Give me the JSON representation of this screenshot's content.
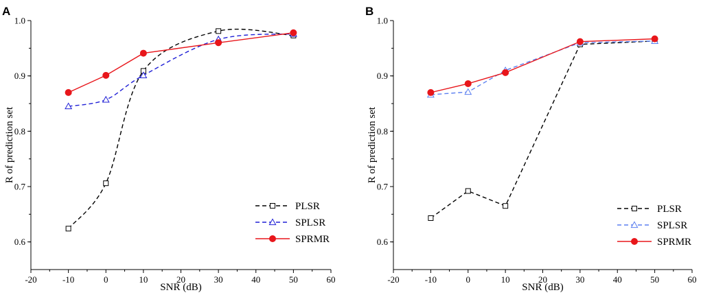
{
  "chart_data": [
    {
      "panel": "A",
      "type": "line",
      "xlabel": "SNR (dB)",
      "ylabel": "R of prediction set",
      "xlim": [
        -20,
        60
      ],
      "ylim": [
        0.55,
        1.0
      ],
      "xticks": [
        -20,
        -10,
        0,
        10,
        20,
        30,
        40,
        50,
        60
      ],
      "yticks": [
        0.6,
        0.7,
        0.8,
        0.9,
        1.0
      ],
      "x": [
        -10,
        0,
        10,
        30,
        50
      ],
      "series": [
        {
          "name": "PLSR",
          "values": [
            0.624,
            0.706,
            0.909,
            0.981,
            0.973
          ],
          "color": "#000000",
          "marker": "square",
          "dashed": true,
          "smooth": true
        },
        {
          "name": "SPLSR",
          "values": [
            0.845,
            0.857,
            0.901,
            0.966,
            0.976
          ],
          "color": "#1f1fd6",
          "marker": "triangle",
          "dashed": true,
          "smooth": true
        },
        {
          "name": "SPRMR",
          "values": [
            0.87,
            0.901,
            0.941,
            0.96,
            0.978
          ],
          "color": "#e8161b",
          "marker": "circle",
          "dashed": false,
          "smooth": false
        }
      ]
    },
    {
      "panel": "B",
      "type": "line",
      "xlabel": "SNR (dB)",
      "ylabel": "R of prediction set",
      "xlim": [
        -20,
        60
      ],
      "ylim": [
        0.55,
        1.0
      ],
      "xticks": [
        -20,
        -10,
        0,
        10,
        20,
        30,
        40,
        50,
        60
      ],
      "yticks": [
        0.6,
        0.7,
        0.8,
        0.9,
        1.0
      ],
      "x": [
        -10,
        0,
        10,
        30,
        50
      ],
      "series": [
        {
          "name": "PLSR",
          "values": [
            0.643,
            0.692,
            0.665,
            0.957,
            0.963
          ],
          "color": "#000000",
          "marker": "square",
          "dashed": true,
          "smooth": false
        },
        {
          "name": "SPLSR",
          "values": [
            0.866,
            0.871,
            0.91,
            0.96,
            0.963
          ],
          "color": "#5a7ef0",
          "marker": "triangle",
          "dashed": true,
          "smooth": false
        },
        {
          "name": "SPRMR",
          "values": [
            0.87,
            0.886,
            0.906,
            0.962,
            0.967
          ],
          "color": "#e8161b",
          "marker": "circle",
          "dashed": false,
          "smooth": false
        }
      ]
    }
  ]
}
